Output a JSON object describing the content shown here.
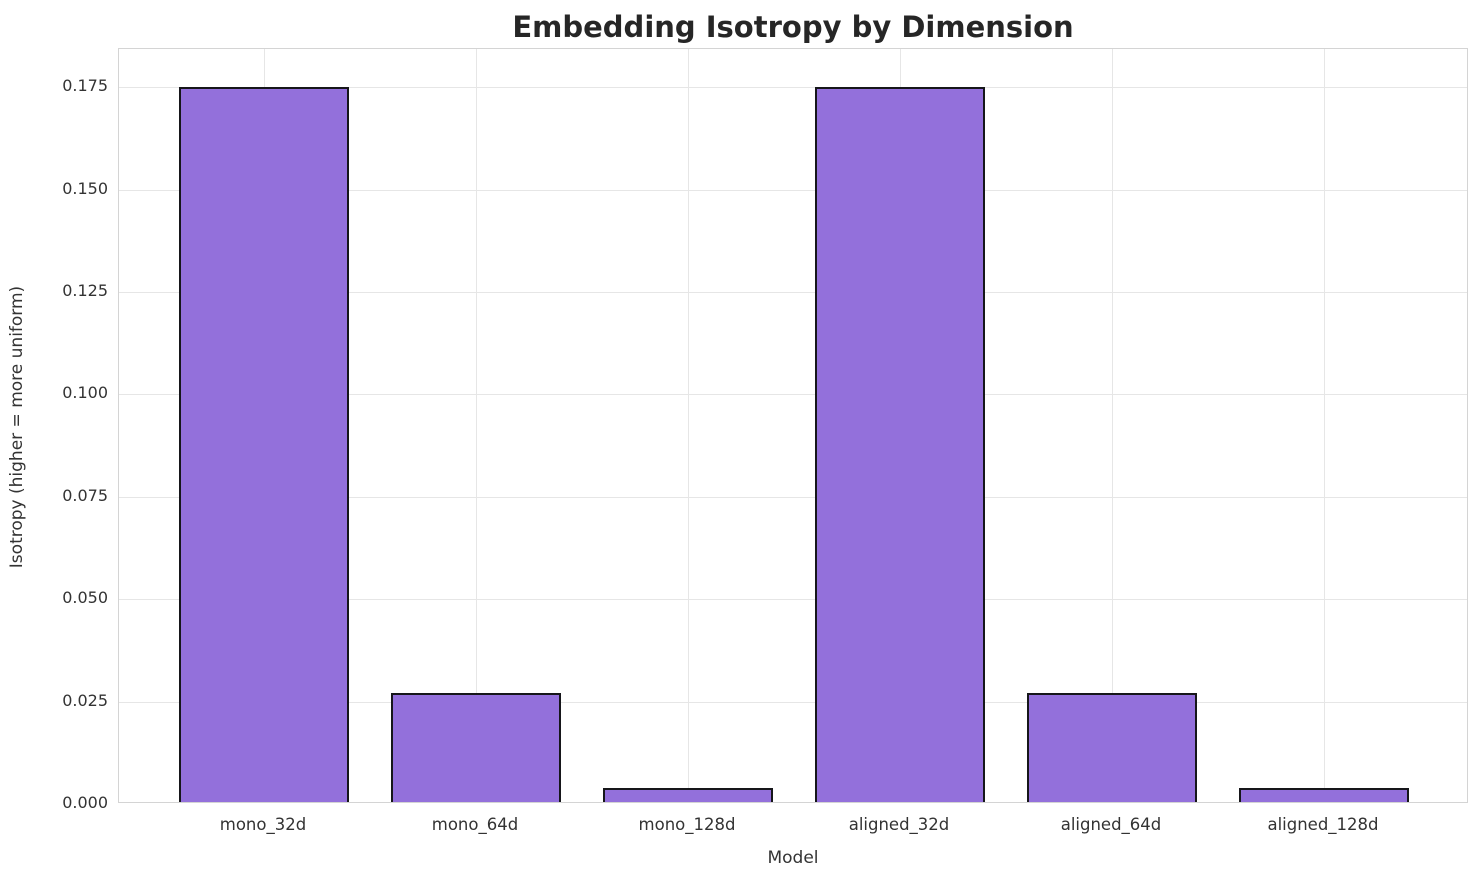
{
  "chart_data": {
    "type": "bar",
    "title": "Embedding Isotropy by Dimension",
    "xlabel": "Model",
    "ylabel": "Isotropy (higher = more uniform)",
    "categories": [
      "mono_32d",
      "mono_64d",
      "mono_128d",
      "aligned_32d",
      "aligned_64d",
      "aligned_128d"
    ],
    "values": [
      0.1745,
      0.0266,
      0.0035,
      0.1745,
      0.0266,
      0.0035
    ],
    "yticks": [
      {
        "value": 0.0,
        "label": "0.000"
      },
      {
        "value": 0.025,
        "label": "0.025"
      },
      {
        "value": 0.05,
        "label": "0.050"
      },
      {
        "value": 0.075,
        "label": "0.075"
      },
      {
        "value": 0.1,
        "label": "0.100"
      },
      {
        "value": 0.125,
        "label": "0.125"
      },
      {
        "value": 0.15,
        "label": "0.150"
      },
      {
        "value": 0.175,
        "label": "0.175"
      }
    ],
    "ylim": [
      0,
      0.1843
    ],
    "grid": true,
    "legend": null,
    "bar_color": "#9370db",
    "bar_edge_color": "#16161a",
    "grid_color": "#e6e6e6",
    "text_color": "#333333",
    "title_color": "#262626"
  }
}
